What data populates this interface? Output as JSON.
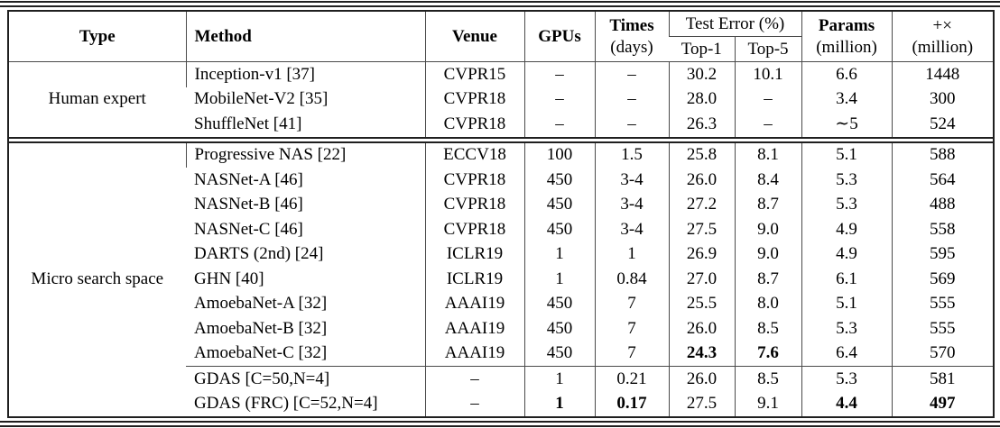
{
  "table": {
    "header": {
      "type": "Type",
      "method": "Method",
      "venue": "Venue",
      "gpus": "GPUs",
      "times_line1": "Times",
      "times_line2": "(days)",
      "test_error": "Test Error (%)",
      "top1": "Top-1",
      "top5": "Top-5",
      "params_line1": "Params",
      "params_line2": "(million)",
      "madds_line1": "+×",
      "madds_line2": "(million)"
    },
    "sections": [
      {
        "type_label": "Human expert",
        "groups": [
          {
            "rows": [
              {
                "method": "Inception-v1 [37]",
                "venue": "CVPR15",
                "gpus": "–",
                "times": "–",
                "top1": "30.2",
                "top5": "10.1",
                "params": "6.6",
                "madds": "1448",
                "bold": []
              },
              {
                "method": "MobileNet-V2 [35]",
                "venue": "CVPR18",
                "gpus": "–",
                "times": "–",
                "top1": "28.0",
                "top5": "–",
                "params": "3.4",
                "madds": "300",
                "bold": []
              },
              {
                "method": "ShuffleNet [41]",
                "venue": "CVPR18",
                "gpus": "–",
                "times": "–",
                "top1": "26.3",
                "top5": "–",
                "params": "∼5",
                "madds": "524",
                "bold": []
              }
            ]
          }
        ]
      },
      {
        "type_label": "Micro search space",
        "groups": [
          {
            "rows": [
              {
                "method": "Progressive NAS [22]",
                "venue": "ECCV18",
                "gpus": "100",
                "times": "1.5",
                "top1": "25.8",
                "top5": "8.1",
                "params": "5.1",
                "madds": "588",
                "bold": []
              },
              {
                "method": "NASNet-A [46]",
                "venue": "CVPR18",
                "gpus": "450",
                "times": "3-4",
                "top1": "26.0",
                "top5": "8.4",
                "params": "5.3",
                "madds": "564",
                "bold": []
              },
              {
                "method": "NASNet-B [46]",
                "venue": "CVPR18",
                "gpus": "450",
                "times": "3-4",
                "top1": "27.2",
                "top5": "8.7",
                "params": "5.3",
                "madds": "488",
                "bold": []
              },
              {
                "method": "NASNet-C [46]",
                "venue": "CVPR18",
                "gpus": "450",
                "times": "3-4",
                "top1": "27.5",
                "top5": "9.0",
                "params": "4.9",
                "madds": "558",
                "bold": []
              },
              {
                "method": "DARTS (2nd) [24]",
                "venue": "ICLR19",
                "gpus": "1",
                "times": "1",
                "top1": "26.9",
                "top5": "9.0",
                "params": "4.9",
                "madds": "595",
                "bold": []
              },
              {
                "method": "GHN [40]",
                "venue": "ICLR19",
                "gpus": "1",
                "times": "0.84",
                "top1": "27.0",
                "top5": "8.7",
                "params": "6.1",
                "madds": "569",
                "bold": []
              },
              {
                "method": "AmoebaNet-A [32]",
                "venue": "AAAI19",
                "gpus": "450",
                "times": "7",
                "top1": "25.5",
                "top5": "8.0",
                "params": "5.1",
                "madds": "555",
                "bold": []
              },
              {
                "method": "AmoebaNet-B [32]",
                "venue": "AAAI19",
                "gpus": "450",
                "times": "7",
                "top1": "26.0",
                "top5": "8.5",
                "params": "5.3",
                "madds": "555",
                "bold": []
              },
              {
                "method": "AmoebaNet-C [32]",
                "venue": "AAAI19",
                "gpus": "450",
                "times": "7",
                "top1": "24.3",
                "top5": "7.6",
                "params": "6.4",
                "madds": "570",
                "bold": [
                  "top1",
                  "top5"
                ]
              }
            ]
          },
          {
            "rows": [
              {
                "method": "GDAS [C=50,N=4]",
                "venue": "–",
                "gpus": "1",
                "times": "0.21",
                "top1": "26.0",
                "top5": "8.5",
                "params": "5.3",
                "madds": "581",
                "bold": []
              },
              {
                "method": "GDAS (FRC) [C=52,N=4]",
                "venue": "–",
                "gpus": "1",
                "times": "0.17",
                "top1": "27.5",
                "top5": "9.1",
                "params": "4.4",
                "madds": "497",
                "bold": [
                  "gpus",
                  "times",
                  "params",
                  "madds"
                ]
              }
            ]
          }
        ]
      }
    ]
  }
}
